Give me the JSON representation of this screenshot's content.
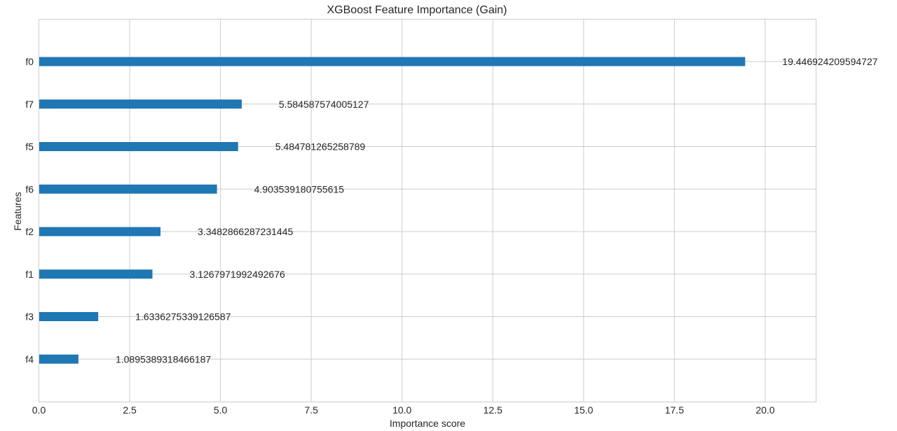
{
  "chart_data": {
    "type": "bar",
    "orientation": "horizontal",
    "title": "XGBoost Feature Importance (Gain)",
    "xlabel": "Importance score",
    "ylabel": "Features",
    "categories": [
      "f0",
      "f7",
      "f5",
      "f6",
      "f2",
      "f1",
      "f3",
      "f4"
    ],
    "values": [
      19.446924209594727,
      5.584587574005127,
      5.484781265258789,
      4.903539180755615,
      3.3482866287231445,
      3.1267971992492676,
      1.6336275339126587,
      1.0895389318466187
    ],
    "value_labels": [
      "19.446924209594727",
      "5.584587574005127",
      "5.484781265258789",
      "4.903539180755615",
      "3.3482866287231445",
      "3.1267971992492676",
      "1.6336275339126587",
      "1.0895389318466187"
    ],
    "xticks": [
      0.0,
      2.5,
      5.0,
      7.5,
      10.0,
      12.5,
      15.0,
      17.5,
      20.0
    ],
    "xtick_labels": [
      "0.0",
      "2.5",
      "5.0",
      "7.5",
      "10.0",
      "12.5",
      "15.0",
      "17.5",
      "20.0"
    ],
    "xlim": [
      0,
      21.4
    ],
    "grid": true,
    "bar_color": "#1f77b4",
    "grid_color": "#cccccc",
    "frame_color": "#cccccc"
  }
}
